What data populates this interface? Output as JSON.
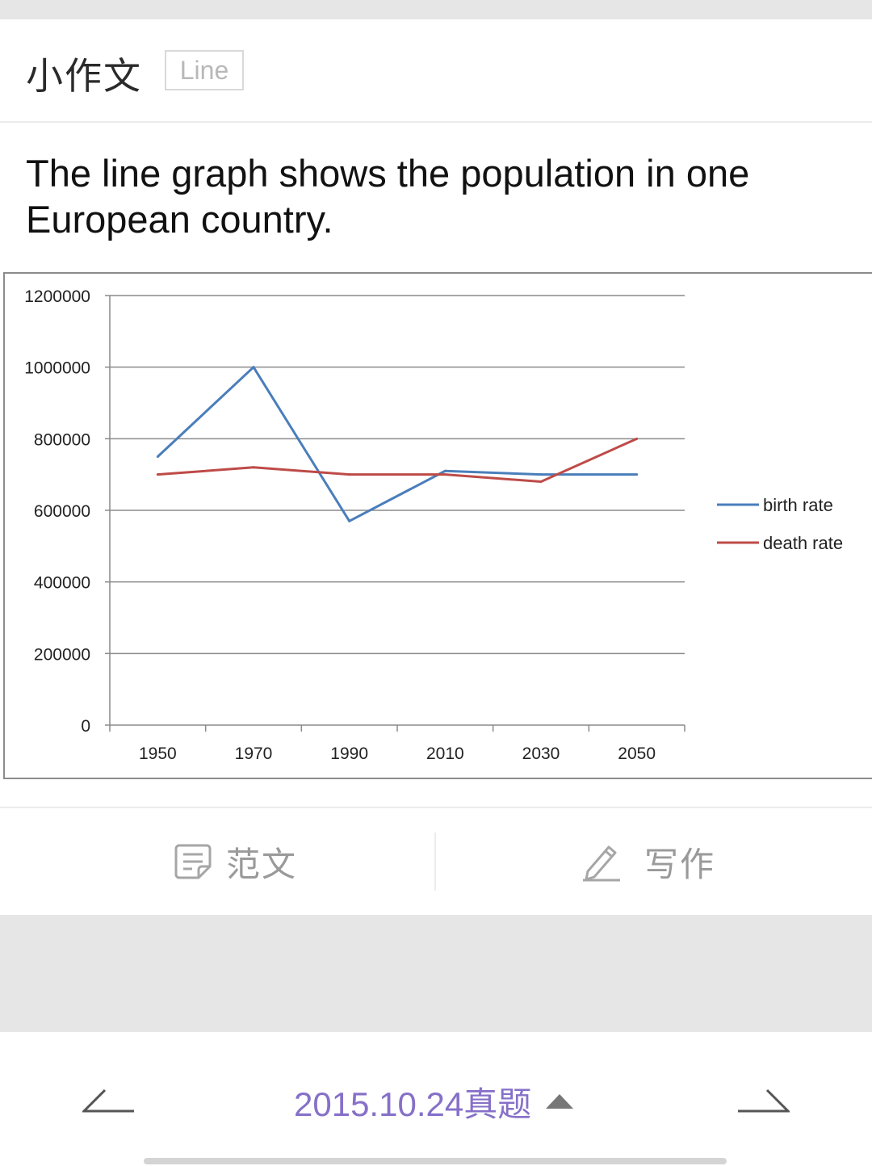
{
  "header": {
    "title": "小作文",
    "tag": "Line"
  },
  "prompt": {
    "text": "The line graph shows the population in one European country."
  },
  "chart_data": {
    "type": "line",
    "title": "",
    "xlabel": "",
    "ylabel": "",
    "categories": [
      "1950",
      "1970",
      "1990",
      "2010",
      "2030",
      "2050"
    ],
    "ylim": [
      0,
      1200000
    ],
    "yticks": [
      0,
      200000,
      400000,
      600000,
      800000,
      1000000,
      1200000
    ],
    "ytick_labels": [
      "0",
      "200000",
      "400000",
      "600000",
      "800000",
      "1000000",
      "1200000"
    ],
    "grid": true,
    "legend_position": "right",
    "series": [
      {
        "name": "birth rate",
        "color": "#4a7ebb",
        "values": [
          750000,
          1000000,
          570000,
          710000,
          700000,
          700000
        ]
      },
      {
        "name": "death rate",
        "color": "#be4b48",
        "values": [
          700000,
          720000,
          700000,
          700000,
          680000,
          800000
        ]
      }
    ]
  },
  "actions": {
    "model_essay_label": "范文",
    "write_label": "写作"
  },
  "nav": {
    "center_label": "2015.10.24真题"
  },
  "icons": {
    "model_essay": "document-icon",
    "write": "pencil-icon",
    "prev": "arrow-left-icon",
    "next": "arrow-right-icon",
    "expand": "caret-up-icon"
  },
  "colors": {
    "accent": "#8670c8",
    "birth": "#4a7ebb",
    "death": "#be4b48"
  }
}
